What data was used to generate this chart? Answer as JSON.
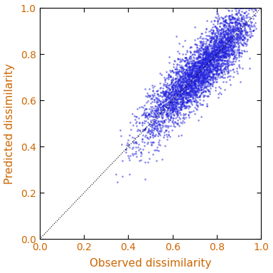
{
  "title": "",
  "xlabel": "Observed dissimilarity",
  "ylabel": "Predicted dissimilarity",
  "xlim": [
    0.0,
    1.0
  ],
  "ylim": [
    0.0,
    1.0
  ],
  "xticks": [
    0.0,
    0.2,
    0.4,
    0.6,
    0.8,
    1.0
  ],
  "yticks": [
    0.0,
    0.2,
    0.4,
    0.6,
    0.8,
    1.0
  ],
  "scatter_color": "#2222dd",
  "scatter_alpha": 0.55,
  "scatter_size": 3.5,
  "line_color": "black",
  "line_style": ":",
  "n_points": 4000,
  "seed": 7,
  "background_color": "#ffffff",
  "label_color": "#cc6600",
  "tick_color": "#cc6600",
  "label_fontsize": 11,
  "tick_fontsize": 10,
  "figsize": [
    3.84,
    3.84
  ],
  "dpi": 100
}
